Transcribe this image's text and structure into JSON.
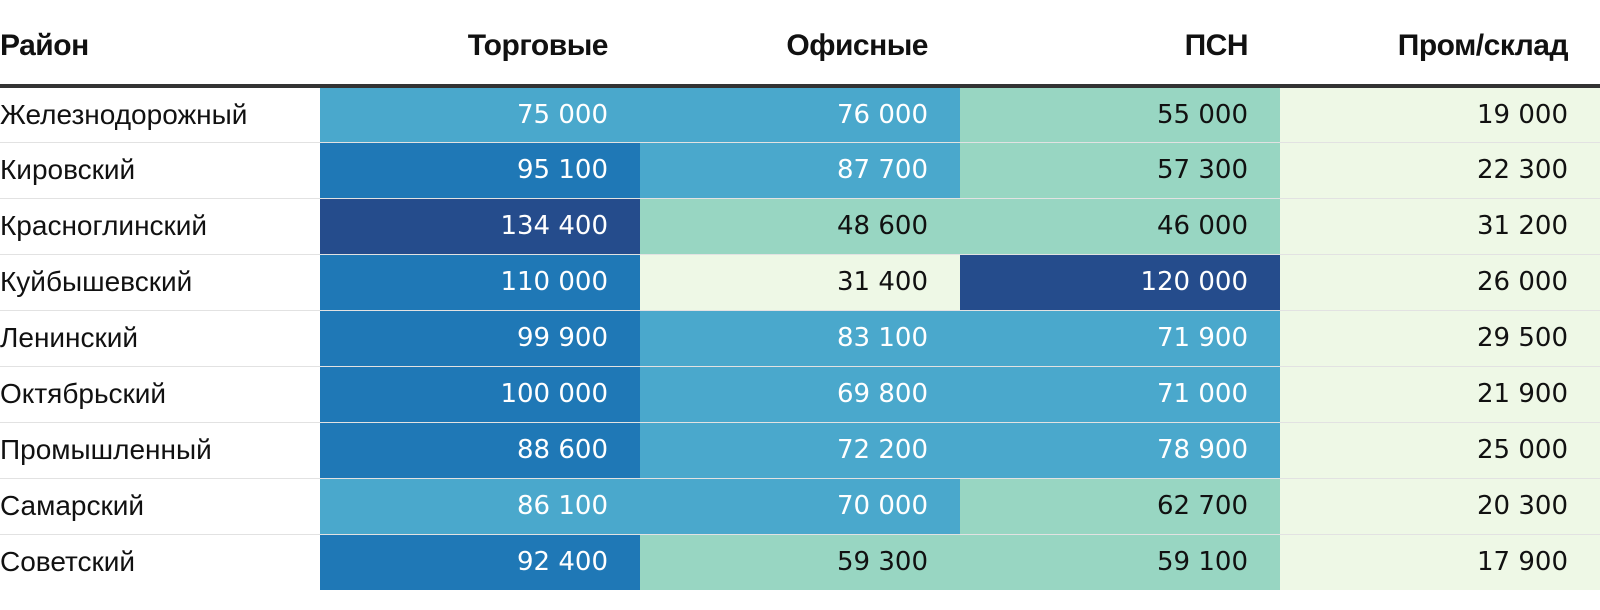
{
  "chart_data": {
    "type": "table",
    "columns": [
      "Район",
      "Торговые",
      "Офисные",
      "ПСН",
      "Пром/склад"
    ],
    "rows": [
      {
        "district": "Железнодорожный",
        "values": [
          "75 000",
          "76 000",
          "55 000",
          "19 000"
        ],
        "colors": [
          "#4aa8cc",
          "#4aa8cc",
          "#98d6c2",
          "#eef8e6"
        ]
      },
      {
        "district": "Кировский",
        "values": [
          "95 100",
          "87 700",
          "57 300",
          "22 300"
        ],
        "colors": [
          "#1f78b6",
          "#4aa8cc",
          "#98d6c2",
          "#eef8e6"
        ]
      },
      {
        "district": "Красноглинский",
        "values": [
          "134 400",
          "48 600",
          "46 000",
          "31 200"
        ],
        "colors": [
          "#254c8c",
          "#98d6c2",
          "#98d6c2",
          "#eef8e6"
        ]
      },
      {
        "district": "Куйбышевский",
        "values": [
          "110 000",
          "31 400",
          "120 000",
          "26 000"
        ],
        "colors": [
          "#1f78b6",
          "#eef8e6",
          "#254c8c",
          "#eef8e6"
        ]
      },
      {
        "district": "Ленинский",
        "values": [
          "99 900",
          "83 100",
          "71 900",
          "29 500"
        ],
        "colors": [
          "#1f78b6",
          "#4aa8cc",
          "#4aa8cc",
          "#eef8e6"
        ]
      },
      {
        "district": "Октябрьский",
        "values": [
          "100 000",
          "69 800",
          "71 000",
          "21 900"
        ],
        "colors": [
          "#1f78b6",
          "#4aa8cc",
          "#4aa8cc",
          "#eef8e6"
        ]
      },
      {
        "district": "Промышленный",
        "values": [
          "88 600",
          "72 200",
          "78 900",
          "25 000"
        ],
        "colors": [
          "#1f78b6",
          "#4aa8cc",
          "#4aa8cc",
          "#eef8e6"
        ]
      },
      {
        "district": "Самарский",
        "values": [
          "86 100",
          "70 000",
          "62 700",
          "20 300"
        ],
        "colors": [
          "#4aa8cc",
          "#4aa8cc",
          "#98d6c2",
          "#eef8e6"
        ]
      },
      {
        "district": "Советский",
        "values": [
          "92 400",
          "59 300",
          "59 100",
          "17 900"
        ],
        "colors": [
          "#1f78b6",
          "#98d6c2",
          "#98d6c2",
          "#eef8e6"
        ]
      }
    ],
    "dark_colors": [
      "#1f78b6",
      "#254c8c",
      "#4aa8cc"
    ]
  }
}
